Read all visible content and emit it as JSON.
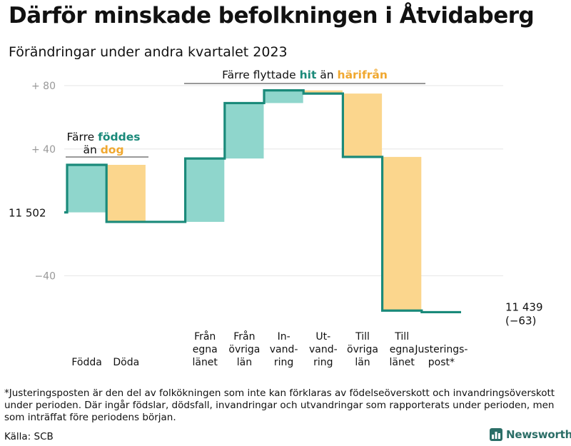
{
  "title": "Därför minskade befolkningen i Åtvidaberg",
  "subtitle": "Förändringar under andra kvartalet 2023",
  "footnote": "*Justeringsposten är den del av folkökningen som inte kan förklaras av födelseöverskott och invandringsöverskott under perioden. Där ingår födslar, dödsfall, invandringar och utvandringar som rapporterats under perioden, men som inträffat före periodens början.",
  "source": "Källa: SCB",
  "brand": "Newsworthy",
  "colors": {
    "increase": "#8fd6cc",
    "decrease": "#fbd68d",
    "line": "#1a8a7a",
    "hit": "#1a8a7a",
    "harifran": "#f0a830",
    "axis_text": "#999999",
    "brand": "#2b6e67"
  },
  "chart_data": {
    "type": "waterfall",
    "start_value": 11502,
    "start_label": "11  502",
    "end_label": "11 439",
    "end_change_label": "(−63)",
    "ylim": [
      -58,
      84
    ],
    "yticks": [
      {
        "value": 80,
        "label": "+  80"
      },
      {
        "value": 40,
        "label": "+  40"
      },
      {
        "value": -40,
        "label": "−40"
      }
    ],
    "steps": [
      {
        "label": [
          "Födda"
        ],
        "delta": 30,
        "kind": "increase"
      },
      {
        "label": [
          "Döda"
        ],
        "delta": -36,
        "kind": "decrease"
      },
      {
        "label": [],
        "delta": 0,
        "kind": "gap"
      },
      {
        "label": [
          "Från",
          "egna",
          "länet"
        ],
        "delta": 40,
        "kind": "increase"
      },
      {
        "label": [
          "Från",
          "övriga",
          "län"
        ],
        "delta": 35,
        "kind": "increase"
      },
      {
        "label": [
          "In-",
          "vand-",
          "ring"
        ],
        "delta": 8,
        "kind": "increase"
      },
      {
        "label": [
          "Ut-",
          "vand-",
          "ring"
        ],
        "delta": -2,
        "kind": "decrease"
      },
      {
        "label": [
          "Till",
          "övriga",
          "län"
        ],
        "delta": -40,
        "kind": "decrease"
      },
      {
        "label": [
          "Till",
          "egna",
          "länet"
        ],
        "delta": -97,
        "kind": "decrease"
      },
      {
        "label": [
          "Justerings-",
          "post*"
        ],
        "delta": -1,
        "kind": "adjustment"
      }
    ],
    "annotations": [
      {
        "group": "births",
        "parts": [
          {
            "text": "Färre ",
            "style": "plain"
          },
          {
            "text": "föddes",
            "style": "hit"
          },
          {
            "text": "än ",
            "style": "plain",
            "newline": true
          },
          {
            "text": "dog",
            "style": "harifran"
          }
        ]
      },
      {
        "group": "migration",
        "parts": [
          {
            "text": "Färre flyttade ",
            "style": "plain"
          },
          {
            "text": "hit",
            "style": "hit"
          },
          {
            "text": "  än ",
            "style": "plain"
          },
          {
            "text": "härifrån",
            "style": "harifran"
          }
        ]
      }
    ]
  }
}
